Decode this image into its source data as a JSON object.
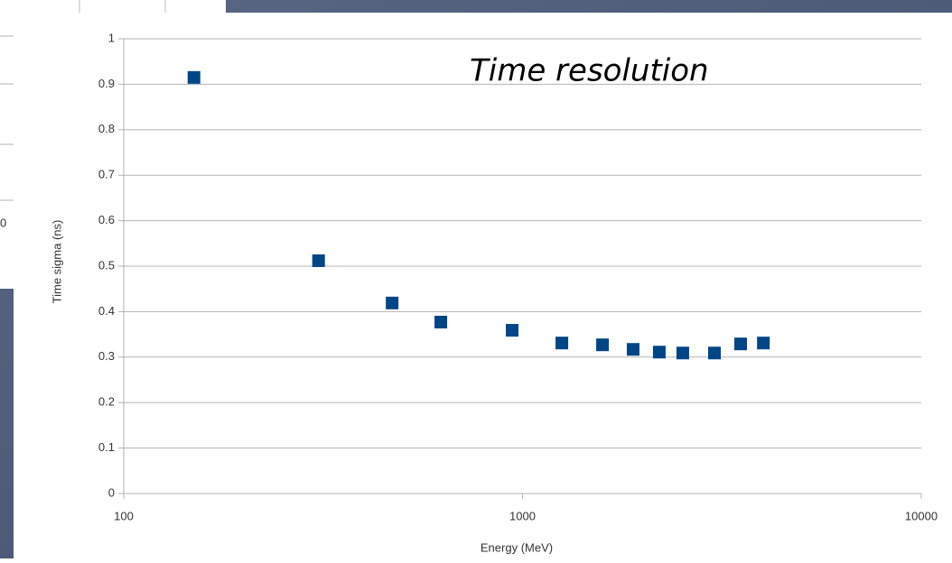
{
  "left_panel": {
    "tick_label": "0"
  },
  "chart_data": {
    "type": "scatter",
    "title": "Time resolution",
    "x_label": "Energy (MeV)",
    "y_label": "Time sigma (ns)",
    "x": [
      150,
      308,
      471,
      624,
      942,
      1255,
      1587,
      1894,
      2203,
      2523,
      3029,
      3524,
      4018
    ],
    "series": [
      {
        "color": "#004586",
        "values": [
          0.915,
          0.512,
          0.419,
          0.377,
          0.359,
          0.331,
          0.327,
          0.317,
          0.311,
          0.309,
          0.309,
          0.329,
          0.331
        ]
      }
    ],
    "xscale": "log",
    "xlim": [
      100,
      10000
    ],
    "xticks": [
      100,
      1000,
      10000
    ],
    "ylim": [
      0,
      1
    ],
    "yticks": [
      0,
      0.1,
      0.2,
      0.3,
      0.4,
      0.5,
      0.6,
      0.7,
      0.8,
      0.9,
      1
    ],
    "grid": true
  }
}
